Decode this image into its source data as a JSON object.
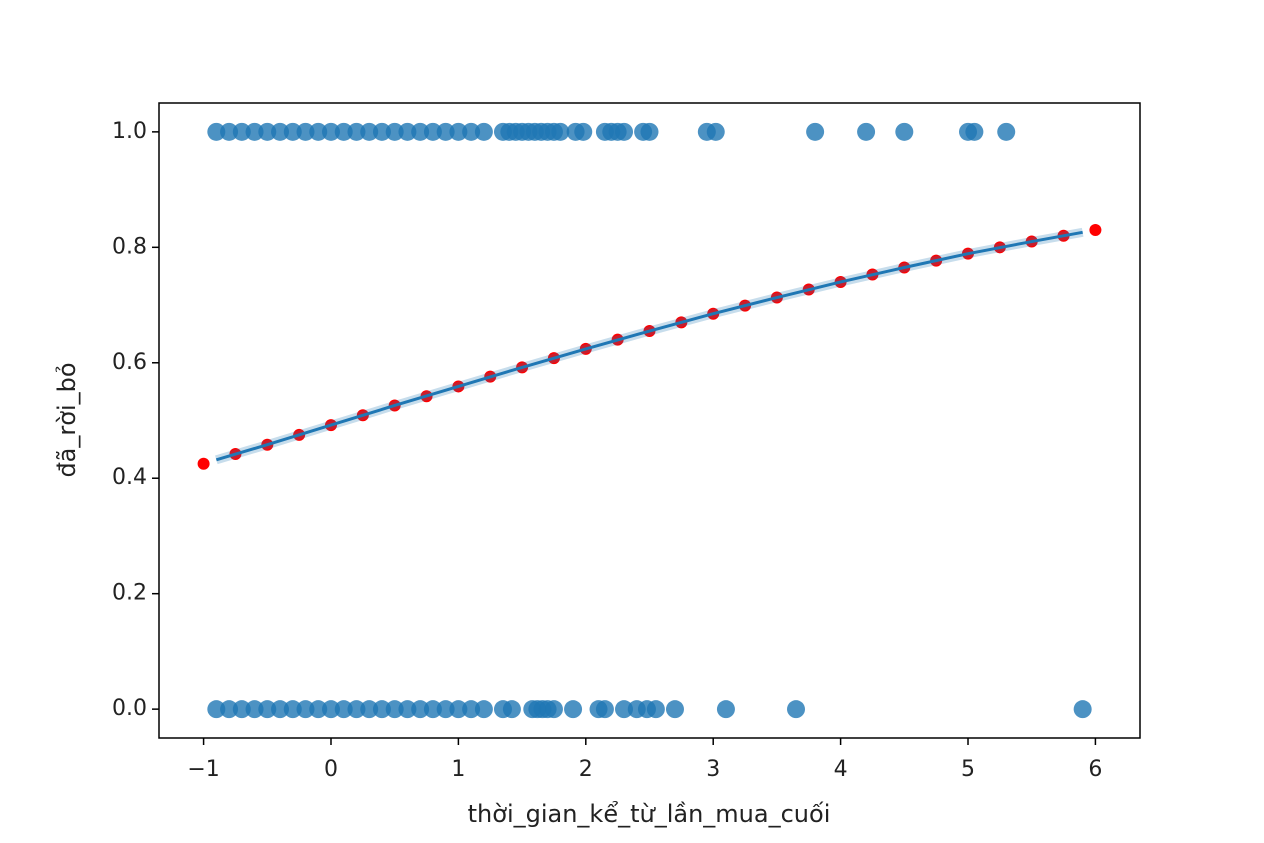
{
  "chart_data": {
    "type": "scatter",
    "x_label": "thời_gian_kể_từ_lần_mua_cuối",
    "y_label": "đã_rời_bỏ",
    "xlim": [
      -1.35,
      6.35
    ],
    "ylim": [
      -0.05,
      1.05
    ],
    "xticks": [
      {
        "value": -1,
        "label": "−1"
      },
      0,
      1,
      2,
      3,
      4,
      5,
      6
    ],
    "yticks": [
      {
        "value": 0,
        "label": "0.0"
      },
      0.2,
      0.4,
      0.6,
      0.8,
      {
        "value": 1,
        "label": "1.0"
      }
    ],
    "series": [
      {
        "type": "scatter",
        "color": "#1f77b4",
        "x": [
          -0.9,
          -0.8,
          -0.7,
          -0.6,
          -0.5,
          -0.4,
          -0.3,
          -0.2,
          -0.1,
          0,
          0.1,
          0.2,
          0.3,
          0.4,
          0.5,
          0.6,
          0.7,
          0.8,
          0.9,
          1,
          1.1,
          1.2,
          1.35,
          1.4,
          1.45,
          1.5,
          1.55,
          1.6,
          1.65,
          1.7,
          1.75,
          1.8,
          1.92,
          1.98,
          2.15,
          2.2,
          2.25,
          2.3,
          2.45,
          2.5,
          2.95,
          3.02,
          3.8,
          4.2,
          4.5,
          5.0,
          5.05,
          5.3
        ],
        "values": [
          1,
          1,
          1,
          1,
          1,
          1,
          1,
          1,
          1,
          1,
          1,
          1,
          1,
          1,
          1,
          1,
          1,
          1,
          1,
          1,
          1,
          1,
          1,
          1,
          1,
          1,
          1,
          1,
          1,
          1,
          1,
          1,
          1,
          1,
          1,
          1,
          1,
          1,
          1,
          1,
          1,
          1,
          1,
          1,
          1,
          1,
          1,
          1
        ]
      },
      {
        "type": "scatter",
        "color": "#1f77b4",
        "x": [
          -0.9,
          -0.8,
          -0.7,
          -0.6,
          -0.5,
          -0.4,
          -0.3,
          -0.2,
          -0.1,
          0,
          0.1,
          0.2,
          0.3,
          0.4,
          0.5,
          0.6,
          0.7,
          0.8,
          0.9,
          1,
          1.1,
          1.2,
          1.35,
          1.42,
          1.58,
          1.62,
          1.66,
          1.7,
          1.75,
          1.9,
          2.1,
          2.15,
          2.3,
          2.4,
          2.48,
          2.55,
          2.7,
          3.1,
          3.65,
          5.9
        ],
        "values": [
          0,
          0,
          0,
          0,
          0,
          0,
          0,
          0,
          0,
          0,
          0,
          0,
          0,
          0,
          0,
          0,
          0,
          0,
          0,
          0,
          0,
          0,
          0,
          0,
          0,
          0,
          0,
          0,
          0,
          0,
          0,
          0,
          0,
          0,
          0,
          0,
          0,
          0,
          0,
          0
        ]
      },
      {
        "type": "line",
        "color": "#1f77b4",
        "x": [
          -0.9,
          -0.5,
          0,
          0.5,
          1,
          1.5,
          2,
          2.5,
          3,
          3.5,
          4,
          4.5,
          5,
          5.5,
          5.9
        ],
        "values": [
          0.432,
          0.458,
          0.492,
          0.526,
          0.559,
          0.592,
          0.624,
          0.655,
          0.685,
          0.713,
          0.74,
          0.765,
          0.789,
          0.81,
          0.826
        ]
      },
      {
        "type": "points",
        "color": "#ff0000",
        "x": [
          -1,
          -0.75,
          -0.5,
          -0.25,
          0,
          0.25,
          0.5,
          0.75,
          1,
          1.25,
          1.5,
          1.75,
          2,
          2.25,
          2.5,
          2.75,
          3,
          3.25,
          3.5,
          3.75,
          4,
          4.25,
          4.5,
          4.75,
          5,
          5.25,
          5.5,
          5.75,
          6
        ],
        "values": [
          0.425,
          0.442,
          0.458,
          0.475,
          0.492,
          0.509,
          0.526,
          0.542,
          0.559,
          0.576,
          0.592,
          0.608,
          0.624,
          0.64,
          0.655,
          0.67,
          0.685,
          0.699,
          0.713,
          0.727,
          0.74,
          0.753,
          0.765,
          0.777,
          0.789,
          0.8,
          0.81,
          0.82,
          0.83
        ]
      }
    ]
  }
}
